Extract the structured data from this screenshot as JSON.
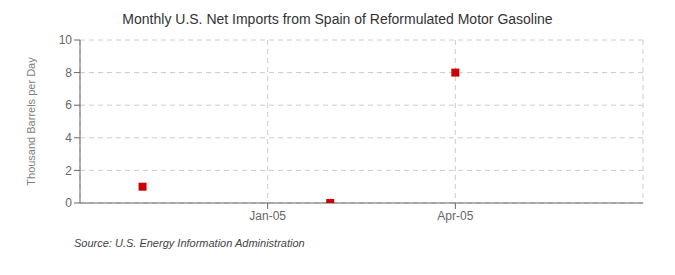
{
  "chart_data": {
    "type": "scatter",
    "title": "Monthly U.S. Net Imports from Spain of Reformulated Motor Gasoline",
    "ylabel": "Thousand Barrels per Day",
    "source": "Source: U.S. Energy Information Administration",
    "x": [
      -2,
      1,
      3
    ],
    "values": [
      1,
      0,
      8
    ],
    "color": "#cc0000",
    "marker": "square",
    "xlim": [
      -3,
      6
    ],
    "xticks": [
      {
        "value": 0,
        "label": "Jan-05"
      },
      {
        "value": 3,
        "label": "Apr-05"
      }
    ],
    "ylim": [
      0,
      10
    ],
    "yticks": [
      0,
      2,
      4,
      6,
      8,
      10
    ],
    "grid": true
  }
}
